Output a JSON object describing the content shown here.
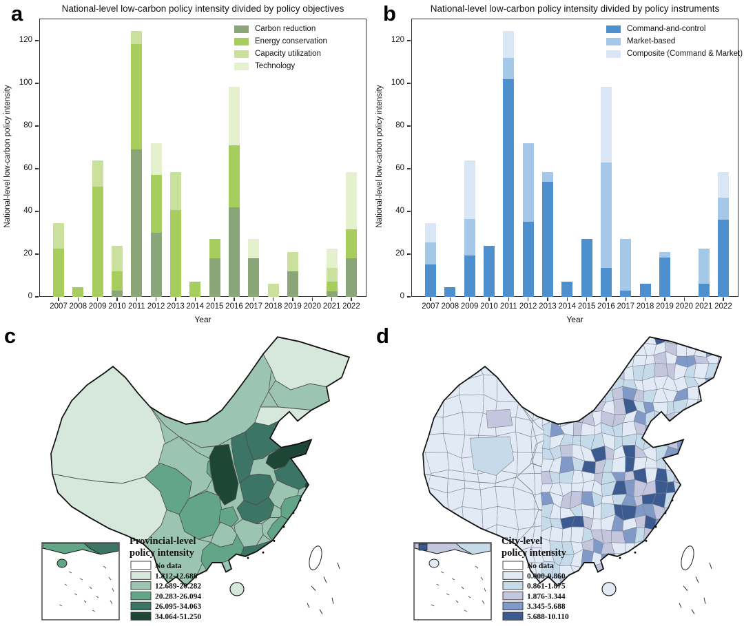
{
  "figure": {
    "panel_letters": {
      "a": "a",
      "b": "b",
      "c": "c",
      "d": "d"
    }
  },
  "chart_data": [
    {
      "panel": "a",
      "type": "bar",
      "stacked": true,
      "title": "National-level low-carbon policy intensity divided by policy objectives",
      "xlabel": "Year",
      "ylabel": "National-level low-carbon policy intensity",
      "ylim": [
        0,
        130.3
      ],
      "yticks": [
        0,
        20,
        40,
        60,
        80,
        100,
        120
      ],
      "grid": false,
      "legend_position": "top-right-inside",
      "categories": [
        "2007",
        "2008",
        "2009",
        "2010",
        "2011",
        "2012",
        "2013",
        "2014",
        "2015",
        "2016",
        "2017",
        "2018",
        "2019",
        "2020",
        "2021",
        "2022"
      ],
      "series": [
        {
          "name": "Carbon reduction",
          "color": "#8aa578",
          "values": [
            0,
            0,
            0,
            3,
            69,
            30,
            0,
            0,
            18,
            42,
            18,
            0,
            12,
            0,
            2.5,
            18
          ]
        },
        {
          "name": "Energy conservation",
          "color": "#a6cd5e",
          "values": [
            22.5,
            4.5,
            51.5,
            9,
            49.5,
            27,
            40.5,
            7,
            9,
            29,
            0,
            0,
            0,
            0,
            4.5,
            13.5
          ]
        },
        {
          "name": "Capacity utilization",
          "color": "#c9e19c",
          "values": [
            12,
            0,
            12.5,
            12,
            6,
            0,
            18,
            0,
            0,
            0,
            0,
            6,
            9,
            0,
            6.5,
            0
          ]
        },
        {
          "name": "Technology",
          "color": "#e5f1cd",
          "values": [
            0,
            0,
            0,
            0,
            0,
            15,
            0,
            0,
            0,
            27.5,
            9,
            0,
            0,
            0,
            9,
            27
          ]
        }
      ]
    },
    {
      "panel": "b",
      "type": "bar",
      "stacked": true,
      "title": "National-level low-carbon policy intensity divided by policy instruments",
      "xlabel": "Year",
      "ylabel": "National-level low-carbon policy intensity",
      "ylim": [
        0,
        130.3
      ],
      "yticks": [
        0,
        20,
        40,
        60,
        80,
        100,
        120
      ],
      "grid": false,
      "legend_position": "top-right-inside",
      "categories": [
        "2007",
        "2008",
        "2009",
        "2010",
        "2011",
        "2012",
        "2013",
        "2014",
        "2015",
        "2016",
        "2017",
        "2018",
        "2019",
        "2020",
        "2021",
        "2022"
      ],
      "series": [
        {
          "name": "Command-and-control",
          "color": "#4e8fce",
          "values": [
            15,
            4.5,
            19.5,
            24,
            102,
            35,
            54,
            7,
            27,
            13.5,
            3,
            6,
            18.5,
            0,
            6,
            36
          ]
        },
        {
          "name": "Market-based",
          "color": "#a5c8e9",
          "values": [
            10.5,
            0,
            17,
            0,
            10,
            37,
            4.5,
            0,
            0,
            49.5,
            24,
            0,
            2.5,
            0,
            16.5,
            10.5
          ]
        },
        {
          "name": "Composite (Command & Market)",
          "color": "#d9e6f5",
          "values": [
            9,
            0,
            27.5,
            0,
            12.5,
            0,
            0,
            0,
            0,
            35.5,
            0,
            0,
            0,
            0,
            0,
            12
          ]
        }
      ]
    }
  ],
  "maps": {
    "provincial": {
      "panel": "c",
      "type": "choropleth",
      "legend_title_line1": "Provincial-level",
      "legend_title_line2": "policy intensity",
      "classes": [
        {
          "label": "No data",
          "color": "#ffffff"
        },
        {
          "label": "1.812-12.688",
          "color": "#d6e8dc"
        },
        {
          "label": "12.689-20.282",
          "color": "#9cc4b2"
        },
        {
          "label": "20.283-26.094",
          "color": "#63a687"
        },
        {
          "label": "26.095-34.063",
          "color": "#3c7565"
        },
        {
          "label": "34.064-51.250",
          "color": "#1d4636"
        }
      ],
      "region_classes": {
        "xinjiang": 1,
        "tibet": 1,
        "qinghai": 3,
        "gansu": 2,
        "ningxia": 3,
        "innermongolia": 2,
        "heilongjiang": 1,
        "jilin": 2,
        "liaoning": 1,
        "hebei": 4,
        "shanxi": 4,
        "shaanxi": 5,
        "shandong": 5,
        "henan": 4,
        "jiangsu": 4,
        "shanghai": 5,
        "anhui": 2,
        "hubei": 4,
        "chongqing": 3,
        "sichuan": 3,
        "zhejiang": 3,
        "jiangxi": 2,
        "hunan": 2,
        "guizhou": 2,
        "yunnan": 2,
        "guangxi": 3,
        "guangdong": 4,
        "fujian": 3,
        "hainan": 1,
        "taiwan": 0
      }
    },
    "city": {
      "panel": "d",
      "type": "choropleth",
      "legend_title_line1": "City-level",
      "legend_title_line2": "policy intensity",
      "classes": [
        {
          "label": "No data",
          "color": "#ffffff"
        },
        {
          "label": "0.000-0.860",
          "color": "#e1eaf5"
        },
        {
          "label": "0.861-1.875",
          "color": "#c6dbe9"
        },
        {
          "label": "1.876-3.344",
          "color": "#c3c6dc"
        },
        {
          "label": "3.345-5.688",
          "color": "#8099c6"
        },
        {
          "label": "5.688-10.110",
          "color": "#3b5a8f"
        }
      ],
      "base_class": 1
    }
  }
}
